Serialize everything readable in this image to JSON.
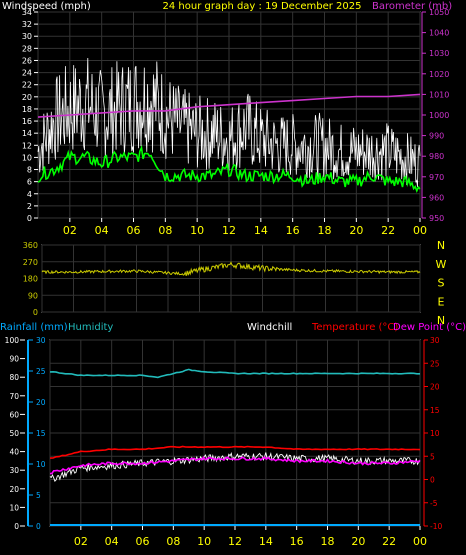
{
  "chart_data": [
    {
      "type": "line",
      "title": "24 hour graph day : 19 December 2025",
      "ylabel_left": "Windspeed (mph)",
      "ylabel_right": "Barometer (mb)",
      "xlim": [
        0,
        24
      ],
      "xticks": [
        "02",
        "04",
        "06",
        "08",
        "10",
        "12",
        "14",
        "16",
        "18",
        "20",
        "22",
        "00"
      ],
      "ylim_left": [
        0,
        34
      ],
      "yticks_left": [
        0,
        2,
        4,
        6,
        8,
        10,
        12,
        14,
        16,
        18,
        20,
        22,
        24,
        26,
        28,
        30,
        32,
        34
      ],
      "ylim_right": [
        950,
        1050
      ],
      "yticks_right": [
        950,
        960,
        970,
        980,
        990,
        1000,
        1010,
        1020,
        1030,
        1040,
        1050
      ],
      "grid": true,
      "colors": {
        "gust": "#ffffff",
        "avg": "#00ff00",
        "barometer": "#cc33cc",
        "axis_left": "#ffffff",
        "axis_right": "#cc33cc",
        "title": "#ffff00"
      },
      "series": [
        {
          "axis": "left",
          "x": [
            0,
            1,
            2,
            3,
            4,
            5,
            6,
            7,
            8,
            9,
            10,
            11,
            12,
            13,
            14,
            15,
            16,
            17,
            18,
            19,
            20,
            21,
            22,
            23,
            24
          ],
          "values": [
            11,
            16,
            18,
            19,
            17,
            18,
            19,
            20,
            17,
            15,
            14,
            14,
            13,
            15,
            13,
            12,
            12,
            12,
            12,
            11,
            11,
            11,
            11,
            10,
            9
          ]
        },
        {
          "axis": "left",
          "x": [
            0,
            1,
            2,
            3,
            4,
            5,
            6,
            7,
            8,
            9,
            10,
            11,
            12,
            13,
            14,
            15,
            16,
            17,
            18,
            19,
            20,
            21,
            22,
            23,
            24
          ],
          "values": [
            7,
            8,
            10,
            10,
            9,
            10,
            10,
            11,
            7,
            7,
            7,
            7,
            8,
            7,
            7,
            7,
            7,
            6,
            7,
            6,
            6,
            7,
            6,
            6,
            5
          ]
        },
        {
          "name": "Barometer (mb)",
          "axis": "right",
          "x": [
            0,
            2,
            4,
            6,
            8,
            10,
            12,
            14,
            16,
            18,
            20,
            22,
            24
          ],
          "values": [
            999,
            1000,
            1001,
            1002,
            1002,
            1004,
            1005,
            1006,
            1007,
            1008,
            1009,
            1009,
            1010
          ]
        }
      ]
    },
    {
      "type": "line",
      "xlim": [
        0,
        24
      ],
      "ylim": [
        0,
        360
      ],
      "yticks": [
        0,
        90,
        180,
        270,
        360
      ],
      "direction_labels": [
        "N",
        "W",
        "S",
        "E",
        "N"
      ],
      "colors": {
        "direction": "#cccc00"
      },
      "series": [
        {
          "x": [
            0,
            2,
            4,
            6,
            8,
            9,
            10,
            11,
            12,
            13,
            14,
            16,
            18,
            20,
            22,
            24
          ],
          "values": [
            215,
            215,
            218,
            220,
            210,
            205,
            225,
            240,
            255,
            245,
            235,
            225,
            220,
            218,
            215,
            215
          ]
        }
      ]
    },
    {
      "type": "line",
      "legend": [
        "Rainfall (mm)",
        "Humidity",
        "Windchill",
        "Temperature (°C)",
        "Dew Point (°C)"
      ],
      "xlim": [
        0,
        24
      ],
      "xticks": [
        "02",
        "04",
        "06",
        "08",
        "10",
        "12",
        "14",
        "16",
        "18",
        "20",
        "22",
        "00"
      ],
      "ylim_humidity": [
        0,
        100
      ],
      "yticks_humidity": [
        0,
        5,
        10,
        15,
        20,
        25,
        30,
        35,
        40,
        45,
        50,
        55,
        60,
        65,
        70,
        75,
        80,
        85,
        90,
        95,
        100
      ],
      "ylim_rain": [
        0,
        30
      ],
      "yticks_rain": [
        0,
        5,
        10,
        15,
        20,
        25,
        30
      ],
      "ylim_temp": [
        -10,
        30
      ],
      "yticks_temp": [
        -10,
        -5,
        0,
        5,
        10,
        15,
        20,
        25,
        30
      ],
      "colors": {
        "rain": "#00aaff",
        "humidity": "#22bbbb",
        "windchill": "#ffffff",
        "temperature": "#ff0000",
        "dewpoint": "#ff00ff",
        "right_axis": "#ff0000",
        "rain_axis": "#00aaff"
      },
      "series": [
        {
          "name": "Humidity",
          "axis": "humidity",
          "x": [
            0,
            1,
            2,
            3,
            4,
            5,
            6,
            7,
            8,
            9,
            10,
            12,
            14,
            16,
            18,
            20,
            22,
            24
          ],
          "values": [
            83,
            82,
            81,
            81,
            81,
            81,
            81,
            80,
            82,
            84,
            83,
            82,
            82,
            82,
            82,
            82,
            82,
            82
          ]
        },
        {
          "name": "Temperature (°C)",
          "axis": "temp",
          "x": [
            0,
            2,
            4,
            6,
            8,
            10,
            12,
            14,
            16,
            18,
            20,
            22,
            24
          ],
          "values": [
            4.5,
            6,
            6.5,
            6.5,
            7,
            7,
            7,
            7,
            6.5,
            6.5,
            6.5,
            6.5,
            6.5
          ]
        },
        {
          "name": "Dew Point (°C)",
          "axis": "temp",
          "x": [
            0,
            2,
            4,
            6,
            8,
            10,
            12,
            14,
            16,
            18,
            20,
            22,
            24
          ],
          "values": [
            1.5,
            3,
            3.5,
            3.5,
            4,
            4.5,
            4.5,
            4.5,
            4,
            4,
            3.5,
            3.5,
            4
          ]
        },
        {
          "name": "Windchill",
          "axis": "temp",
          "x": [
            0,
            2,
            4,
            6,
            8,
            10,
            12,
            14,
            16,
            18,
            20,
            22,
            24
          ],
          "values": [
            0,
            2.5,
            3,
            3.5,
            4,
            4.5,
            5,
            5,
            4.5,
            4.5,
            4,
            4,
            4
          ]
        },
        {
          "name": "Rainfall (mm)",
          "axis": "rain",
          "x": [
            0,
            24
          ],
          "values": [
            0,
            0
          ]
        }
      ]
    }
  ]
}
